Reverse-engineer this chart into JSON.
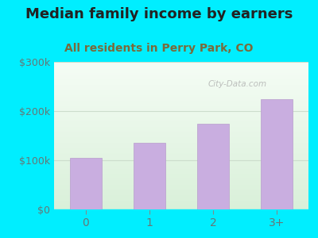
{
  "title": "Median family income by earners",
  "subtitle": "All residents in Perry Park, CO",
  "categories": [
    "0",
    "1",
    "2",
    "3+"
  ],
  "values": [
    105000,
    135000,
    175000,
    225000
  ],
  "bar_color": "#c9aee0",
  "bar_edge_color": "#b89dcc",
  "ylim": [
    0,
    300000
  ],
  "yticks": [
    0,
    100000,
    200000,
    300000
  ],
  "ytick_labels": [
    "$0",
    "$100k",
    "$200k",
    "$300k"
  ],
  "background_outer": "#00eeff",
  "title_color": "#222222",
  "subtitle_color": "#7a6a3a",
  "title_fontsize": 13,
  "subtitle_fontsize": 10,
  "watermark": "City-Data.com",
  "tick_label_color": "#667777",
  "grid_color": "#ccddcc"
}
